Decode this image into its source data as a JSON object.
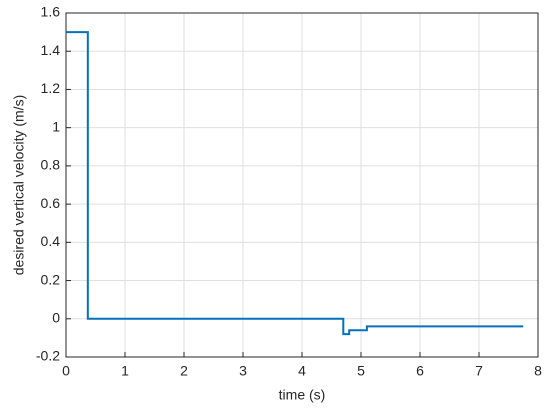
{
  "chart_data": {
    "type": "line",
    "xlabel": "time (s)",
    "ylabel": "desired vertical velocity (m/s)",
    "x": [
      0,
      0.37,
      0.37,
      4.7,
      4.7,
      4.8,
      4.8,
      5.1,
      5.1,
      7.75
    ],
    "series": [
      {
        "color": "#0072bd",
        "values": [
          1.5,
          1.5,
          0,
          0,
          -0.08,
          -0.08,
          -0.06,
          -0.06,
          -0.04,
          -0.04
        ]
      }
    ],
    "xlim": [
      0,
      8
    ],
    "xticks": [
      0,
      1,
      2,
      3,
      4,
      5,
      6,
      7,
      8
    ],
    "ylim": [
      -0.2,
      1.6
    ],
    "yticks": [
      -0.2,
      0,
      0.2,
      0.4,
      0.6,
      0.8,
      1,
      1.2,
      1.4,
      1.6
    ],
    "grid": true
  }
}
